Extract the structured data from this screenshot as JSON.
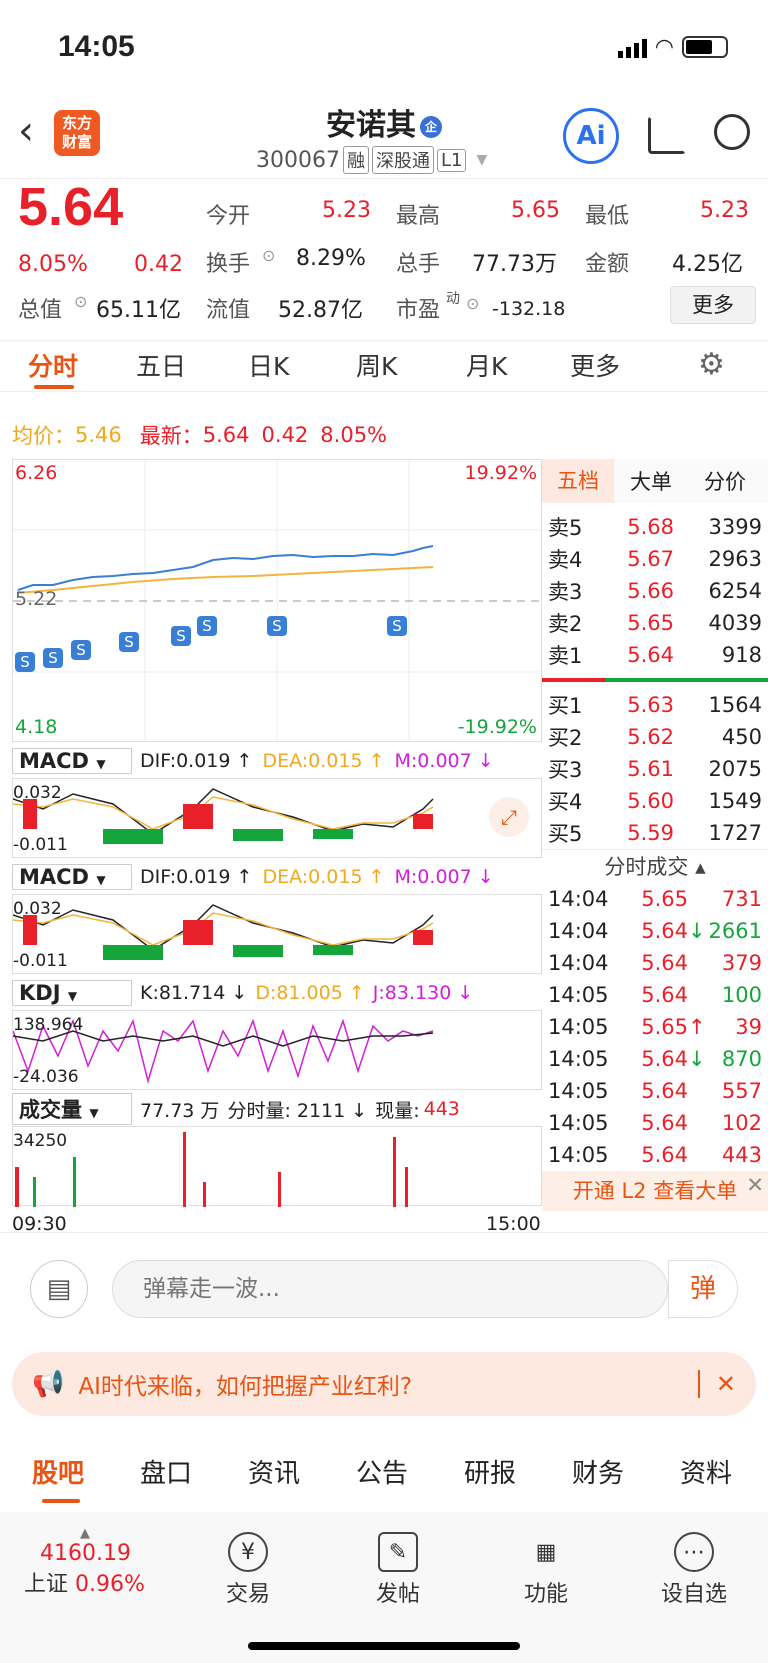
{
  "status": {
    "time": "14:05"
  },
  "header": {
    "logo": "东方财富",
    "name": "安诺其",
    "badge": "企",
    "code": "300067",
    "tags": [
      "融",
      "深股通",
      "L1"
    ],
    "ai": "Ai"
  },
  "quote": {
    "price": "5.64",
    "pct": "8.05%",
    "chg": "0.42",
    "f1l": "今开",
    "f1v": "5.23",
    "f2l": "最高",
    "f2v": "5.65",
    "f3l": "最低",
    "f3v": "5.23",
    "f4l": "换手",
    "f4v": "8.29%",
    "f5l": "总手",
    "f5v": "77.73万",
    "f6l": "金额",
    "f6v": "4.25亿",
    "f7l": "总值",
    "f7v": "65.11亿",
    "f8l": "流值",
    "f8v": "52.87亿",
    "f9l": "市盈",
    "f9sup": "动",
    "f9v": "-132.18",
    "more": "更多"
  },
  "tabs": [
    "分时",
    "五日",
    "日K",
    "周K",
    "月K",
    "更多"
  ],
  "avg": {
    "l1": "均价：",
    "v1": "5.46",
    "l2": "最新：",
    "v2": "5.64",
    "v3": "0.42",
    "v4": "8.05%"
  },
  "chart": {
    "ymax": "6.26",
    "ymid": "5.22",
    "ymin": "4.18",
    "pmax": "19.92%",
    "pmin": "-19.92%",
    "xstart": "09:30",
    "xend": "15:00",
    "smark": "S",
    "macd": {
      "name": "MACD",
      "dif": "DIF:0.019 ↑",
      "dea": "DEA:0.015 ↑",
      "m": "M:0.007 ↓",
      "top": "0.032",
      "bot": "-0.011"
    },
    "kdj": {
      "name": "KDJ",
      "k": "K:81.714 ↓",
      "d": "D:81.005 ↑",
      "j": "J:83.130 ↓",
      "top": "138.964",
      "bot": "-24.036"
    },
    "vol": {
      "name": "成交量",
      "total": "77.73 万",
      "fs": "分时量: 2111 ↓",
      "xl": "现量:",
      "xv": "443",
      "top": "34250"
    }
  },
  "rightpanel": {
    "tabs": [
      "五档",
      "大单",
      "分价"
    ],
    "sell": [
      [
        "卖5",
        "5.68",
        "3399"
      ],
      [
        "卖4",
        "5.67",
        "2963"
      ],
      [
        "卖3",
        "5.66",
        "6254"
      ],
      [
        "卖2",
        "5.65",
        "4039"
      ],
      [
        "卖1",
        "5.64",
        "918"
      ]
    ],
    "buy": [
      [
        "买1",
        "5.63",
        "1564"
      ],
      [
        "买2",
        "5.62",
        "450"
      ],
      [
        "买3",
        "5.61",
        "2075"
      ],
      [
        "买4",
        "5.60",
        "1549"
      ],
      [
        "买5",
        "5.59",
        "1727"
      ]
    ],
    "ticks_title": "分时成交",
    "ticks": [
      [
        "14:04",
        "5.65",
        "",
        "731",
        "r"
      ],
      [
        "14:04",
        "5.64",
        "↓",
        "2661",
        "g"
      ],
      [
        "14:04",
        "5.64",
        "",
        "379",
        "r"
      ],
      [
        "14:05",
        "5.64",
        "",
        "100",
        "g"
      ],
      [
        "14:05",
        "5.65",
        "↑",
        "39",
        "r"
      ],
      [
        "14:05",
        "5.64",
        "↓",
        "870",
        "g"
      ],
      [
        "14:05",
        "5.64",
        "",
        "557",
        "r"
      ],
      [
        "14:05",
        "5.64",
        "",
        "102",
        "r"
      ],
      [
        "14:05",
        "5.64",
        "",
        "443",
        "r"
      ]
    ],
    "l2": "开通 L2 查看大单"
  },
  "comment": {
    "placeholder": "弹幕走一波...",
    "btn": "弹"
  },
  "banner": {
    "text": "AI时代来临，如何把握产业红利?"
  },
  "bottomtabs": [
    "股吧",
    "盘口",
    "资讯",
    "公告",
    "研报",
    "财务",
    "资料"
  ],
  "footer": {
    "index": "4160.19",
    "name": "上证",
    "pct": "0.96%",
    "items": [
      "交易",
      "发帖",
      "功能",
      "设自选"
    ]
  }
}
